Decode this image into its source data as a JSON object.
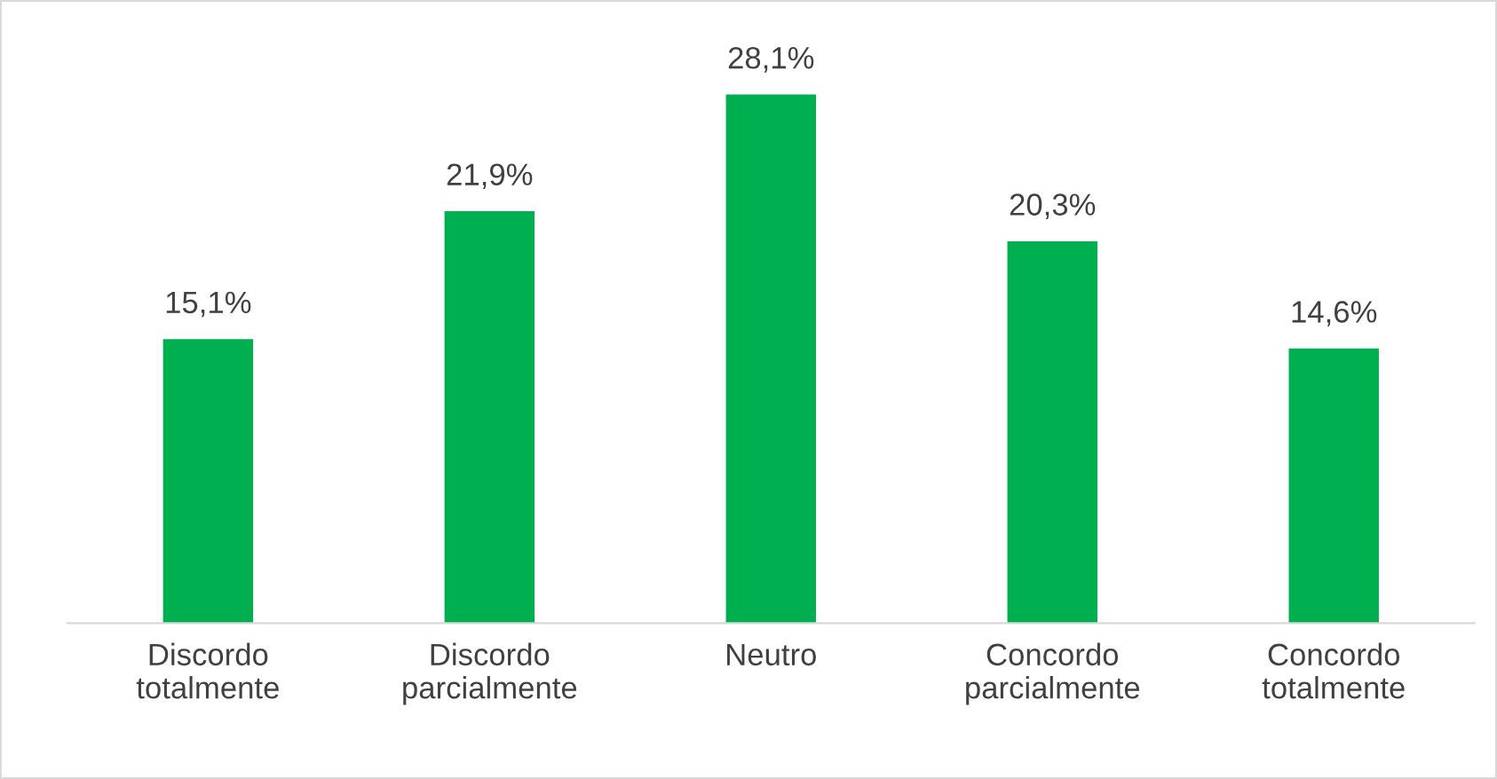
{
  "chart_data": {
    "type": "bar",
    "categories": [
      "Discordo\ntotalmente",
      "Discordo\nparcialmente",
      "Neutro",
      "Concordo\nparcialmente",
      "Concordo\ntotalmente"
    ],
    "values": [
      15.1,
      21.9,
      28.1,
      20.3,
      14.6
    ],
    "value_labels": [
      "15,1%",
      "21,9%",
      "28,1%",
      "20,3%",
      "14,6%"
    ],
    "color": "#00b050",
    "grid": false,
    "legend": false
  }
}
